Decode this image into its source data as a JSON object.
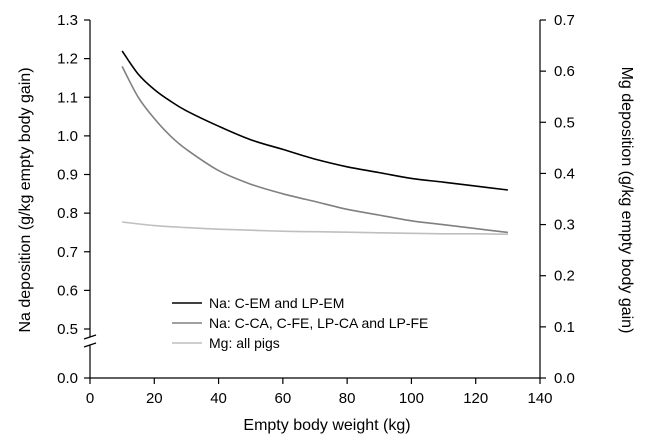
{
  "chart_data": {
    "type": "line",
    "xlabel": "Empty body weight (kg)",
    "ylabel": "Na deposition (g/kg empty body gain)",
    "y2label": "Mg deposition (g/kg empty body gain)",
    "xlim": [
      0,
      140
    ],
    "xticks": [
      "0",
      "20",
      "40",
      "60",
      "80",
      "100",
      "120",
      "140"
    ],
    "ylim": [
      0,
      1.3
    ],
    "yticks": [
      "0.0",
      "0.5",
      "0.6",
      "0.7",
      "0.8",
      "0.9",
      "1.0",
      "1.1",
      "1.2",
      "1.3"
    ],
    "y_axis_break": "0.0–0.5",
    "y2lim": [
      0,
      0.7
    ],
    "y2ticks": [
      "0.0",
      "0.1",
      "0.2",
      "0.3",
      "0.4",
      "0.5",
      "0.6",
      "0.7"
    ],
    "grid": false,
    "legend_position": "bottom-left",
    "series": [
      {
        "name": "Na: C-EM and LP-EM",
        "axis": "left",
        "color": "#000000",
        "x": [
          10,
          15,
          20,
          25,
          30,
          40,
          50,
          60,
          70,
          80,
          90,
          100,
          110,
          120,
          130
        ],
        "y": [
          1.22,
          1.16,
          1.12,
          1.09,
          1.065,
          1.025,
          0.99,
          0.965,
          0.94,
          0.92,
          0.905,
          0.89,
          0.88,
          0.87,
          0.86
        ]
      },
      {
        "name": "Na: C-CA, C-FE, LP-CA and LP-FE",
        "axis": "left",
        "color": "#808080",
        "x": [
          10,
          15,
          20,
          25,
          30,
          40,
          50,
          60,
          70,
          80,
          90,
          100,
          110,
          120,
          130
        ],
        "y": [
          1.18,
          1.1,
          1.045,
          1.0,
          0.965,
          0.91,
          0.875,
          0.85,
          0.83,
          0.81,
          0.795,
          0.78,
          0.77,
          0.76,
          0.75
        ]
      },
      {
        "name": "Mg: all pigs",
        "axis": "right",
        "color": "#bfbfbf",
        "x": [
          10,
          20,
          30,
          40,
          50,
          60,
          70,
          80,
          90,
          100,
          110,
          120,
          130
        ],
        "y": [
          0.305,
          0.298,
          0.294,
          0.291,
          0.289,
          0.287,
          0.286,
          0.285,
          0.284,
          0.283,
          0.282,
          0.282,
          0.281
        ]
      }
    ]
  }
}
